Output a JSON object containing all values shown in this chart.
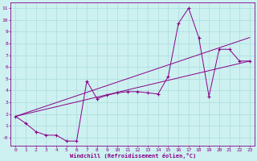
{
  "xlabel": "Windchill (Refroidissement éolien,°C)",
  "bg_color": "#cdf0f0",
  "grid_color": "#aadddd",
  "line_color": "#880088",
  "xlim": [
    -0.5,
    23.5
  ],
  "ylim": [
    -0.7,
    11.5
  ],
  "xticks": [
    0,
    1,
    2,
    3,
    4,
    5,
    6,
    7,
    8,
    9,
    10,
    11,
    12,
    13,
    14,
    15,
    16,
    17,
    18,
    19,
    20,
    21,
    22,
    23
  ],
  "yticks": [
    0,
    1,
    2,
    3,
    4,
    5,
    6,
    7,
    8,
    9,
    10,
    11
  ],
  "ytick_labels": [
    "-0",
    "1",
    "2",
    "3",
    "4",
    "5",
    "6",
    "7",
    "8",
    "9",
    "10",
    "11"
  ],
  "line1_x": [
    0,
    1,
    2,
    3,
    4,
    5,
    6,
    7,
    8,
    9,
    10,
    11,
    12,
    13,
    14,
    15,
    16,
    17,
    18,
    19,
    20,
    21,
    22,
    23
  ],
  "line1_y": [
    1.8,
    1.2,
    0.5,
    0.2,
    0.2,
    -0.3,
    -0.3,
    4.8,
    3.3,
    3.6,
    3.8,
    3.9,
    3.9,
    3.8,
    3.7,
    5.2,
    9.7,
    11.0,
    8.5,
    3.5,
    7.5,
    7.5,
    6.5,
    6.5
  ],
  "line2_x": [
    0,
    23
  ],
  "line2_y": [
    1.8,
    6.5
  ],
  "line3_x": [
    0,
    23
  ],
  "line3_y": [
    1.8,
    8.5
  ]
}
